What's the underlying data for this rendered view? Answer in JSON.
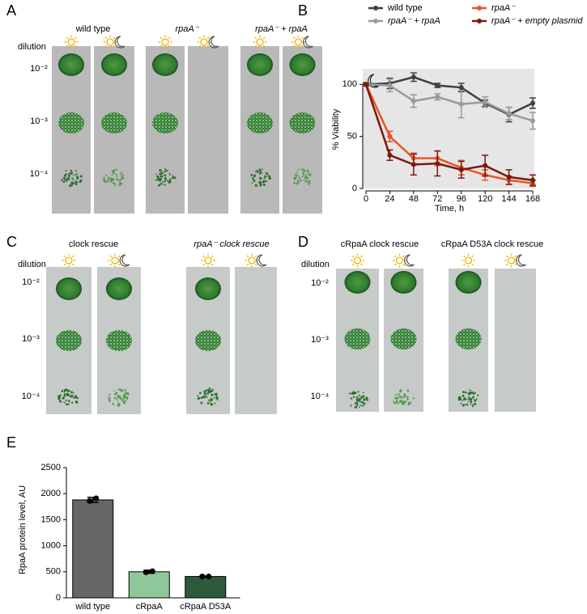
{
  "panels": {
    "A": {
      "letter": "A",
      "dilution": "dilution",
      "dilutions": [
        "10⁻²",
        "10⁻³",
        "10⁻⁴"
      ],
      "strains": [
        "wild type",
        "rpaA⁻",
        "rpaA⁻ + rpaA"
      ]
    },
    "C": {
      "letter": "C",
      "dilution": "dilution",
      "dilutions": [
        "10⁻²",
        "10⁻³",
        "10⁻⁴"
      ],
      "strains": [
        "clock rescue",
        "rpaA⁻ clock rescue"
      ]
    },
    "D": {
      "letter": "D",
      "dilution": "dilution",
      "dilutions": [
        "10⁻²",
        "10⁻³",
        "10⁻⁴"
      ],
      "strains": [
        "cRpaA clock rescue",
        "cRpaA D53A clock rescue"
      ]
    }
  },
  "chart_data": [
    {
      "type": "line",
      "panel": "B",
      "x_label": "Time, h",
      "y_label": "% Viability",
      "x": [
        0,
        24,
        48,
        72,
        96,
        120,
        144,
        168
      ],
      "xlim": [
        0,
        168
      ],
      "xticks": [
        0,
        24,
        48,
        72,
        96,
        120,
        144,
        168
      ],
      "ylim": [
        0,
        115
      ],
      "yticks": [
        0,
        50,
        100
      ],
      "legend": "top",
      "series": [
        {
          "name": "wild type",
          "color": "#404040",
          "values": [
            100,
            101,
            107,
            99,
            97,
            82,
            71,
            82
          ],
          "errors": [
            2,
            5,
            4,
            2,
            4,
            3,
            7,
            5
          ]
        },
        {
          "name": "rpaA⁻ + rpaA",
          "color": "#9a9a9a",
          "values": [
            100,
            99,
            84,
            88,
            81,
            83,
            72,
            65
          ],
          "errors": [
            2,
            6,
            6,
            3,
            13,
            5,
            6,
            8
          ]
        },
        {
          "name": "rpaA⁻",
          "color": "#e8552a",
          "values": [
            100,
            50,
            29,
            29,
            20,
            13,
            8,
            5
          ],
          "errors": [
            1,
            5,
            5,
            7,
            7,
            5,
            4,
            3
          ]
        },
        {
          "name": "rpaA⁻ + empty plasmid",
          "color": "#7a1a0a",
          "values": [
            100,
            32,
            23,
            24,
            18,
            22,
            11,
            8
          ],
          "errors": [
            1,
            5,
            10,
            12,
            8,
            10,
            7,
            5
          ]
        }
      ]
    },
    {
      "type": "bar",
      "panel": "E",
      "y_label": "RpaA protein level, AU",
      "categories": [
        "wild type",
        "cRpaA",
        "cRpaA D53A"
      ],
      "values": [
        1880,
        500,
        410
      ],
      "errors": [
        50,
        30,
        10
      ],
      "points": [
        [
          1860,
          1910
        ],
        [
          490,
          510
        ],
        [
          410,
          410
        ]
      ],
      "colors": [
        "#666666",
        "#8fc79a",
        "#2e5a3a"
      ],
      "ylim": [
        0,
        2500
      ],
      "yticks": [
        0,
        500,
        1000,
        1500,
        2000,
        2500
      ]
    }
  ]
}
